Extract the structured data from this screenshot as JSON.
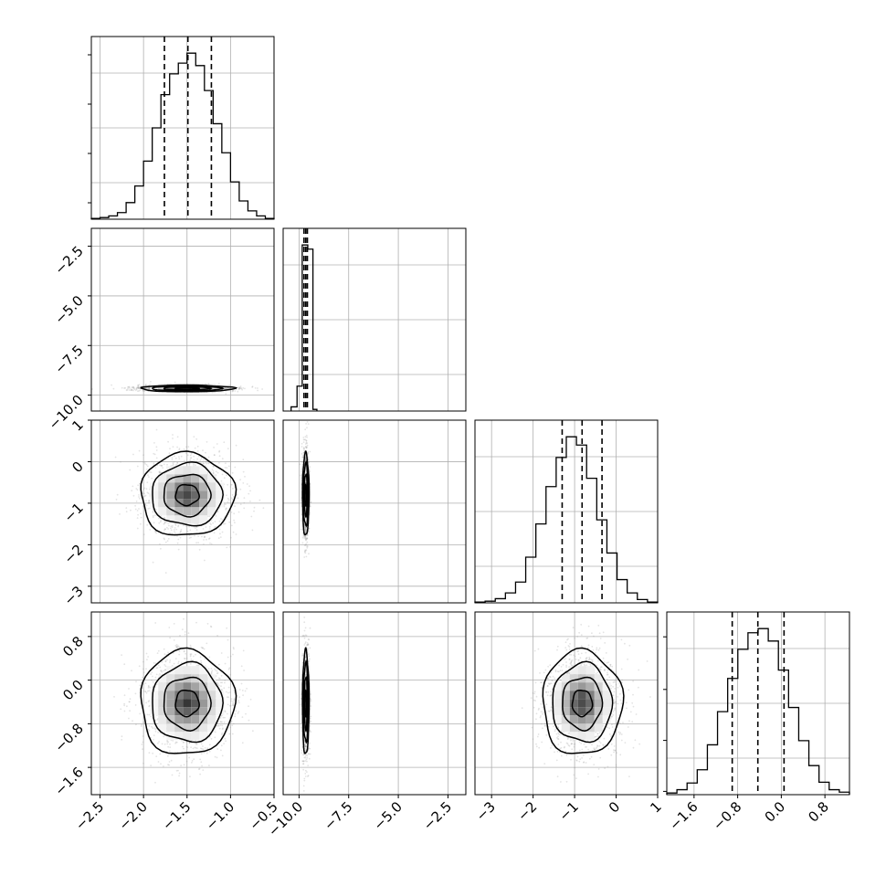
{
  "chart_data": {
    "type": "corner",
    "parameters": 4,
    "colors": {
      "line": "#000000",
      "grid": "#b0b0b0",
      "scatter": "#9a9a9a",
      "density": "#000000"
    },
    "grid": true,
    "ranges": [
      [
        -2.6,
        -0.5
      ],
      [
        -10.8,
        -1.6
      ],
      [
        -3.4,
        1.0
      ],
      [
        -2.1,
        1.25
      ]
    ],
    "ticks": [
      {
        "values": [
          -2.5,
          -2.0,
          -1.5,
          -1.0,
          -0.5
        ],
        "labels": [
          "−2.5",
          "−2.0",
          "−1.5",
          "−1.0",
          "−0.5"
        ]
      },
      {
        "values": [
          -10.0,
          -7.5,
          -5.0,
          -2.5
        ],
        "labels": [
          "−10.0",
          "−7.5",
          "−5.0",
          "−2.5"
        ]
      },
      {
        "values": [
          -3,
          -2,
          -1,
          0,
          1
        ],
        "labels": [
          "−3",
          "−2",
          "−1",
          "0",
          "1"
        ]
      },
      {
        "values": [
          -1.6,
          -0.8,
          0.0,
          0.8
        ],
        "labels": [
          "−1.6",
          "−0.8",
          "0.0",
          "0.8"
        ]
      }
    ],
    "marginals": [
      {
        "param": 0,
        "counts": [
          1,
          2,
          4,
          8,
          20,
          40,
          70,
          110,
          150,
          175,
          188,
          200,
          185,
          155,
          115,
          80,
          45,
          22,
          10,
          4,
          1
        ],
        "quantiles": [
          -1.76,
          -1.49,
          -1.22
        ]
      },
      {
        "param": 1,
        "bins": [
          [
            -10.4,
            -10.1,
            5
          ],
          [
            -10.1,
            -9.84,
            30
          ],
          [
            -9.84,
            -9.56,
            200
          ],
          [
            -9.56,
            -9.3,
            195
          ],
          [
            -9.3,
            -9.1,
            2
          ]
        ],
        "quantiles": [
          -9.75,
          -9.66,
          -9.58
        ]
      },
      {
        "param": 2,
        "counts": [
          1,
          2,
          5,
          12,
          25,
          55,
          95,
          140,
          175,
          200,
          190,
          150,
          100,
          60,
          28,
          12,
          4,
          1
        ],
        "quantiles": [
          -1.3,
          -0.82,
          -0.34
        ]
      },
      {
        "param": 3,
        "counts": [
          2,
          6,
          14,
          30,
          60,
          100,
          140,
          175,
          195,
          200,
          185,
          150,
          105,
          65,
          35,
          15,
          6,
          3
        ],
        "quantiles": [
          -0.9,
          -0.43,
          0.05
        ]
      }
    ],
    "joints": [
      {
        "x": 0,
        "y": 1,
        "mean": [
          -1.5,
          -9.66
        ],
        "sd": [
          0.27,
          0.08
        ],
        "peak": [
          -1.5,
          -9.66
        ]
      },
      {
        "x": 0,
        "y": 2,
        "mean": [
          -1.5,
          -0.8
        ],
        "sd": [
          0.27,
          0.5
        ],
        "peak": [
          -1.45,
          -0.7
        ]
      },
      {
        "x": 1,
        "y": 2,
        "mean": [
          -9.66,
          -0.8
        ],
        "sd": [
          0.08,
          0.5
        ],
        "peak": [
          -9.66,
          -0.75
        ]
      },
      {
        "x": 0,
        "y": 3,
        "mean": [
          -1.5,
          -0.42
        ],
        "sd": [
          0.27,
          0.48
        ],
        "peak": [
          -1.45,
          -0.4
        ]
      },
      {
        "x": 1,
        "y": 3,
        "mean": [
          -9.66,
          -0.42
        ],
        "sd": [
          0.08,
          0.48
        ],
        "peak": [
          -9.66,
          -0.42
        ]
      },
      {
        "x": 2,
        "y": 3,
        "mean": [
          -0.82,
          -0.42
        ],
        "sd": [
          0.48,
          0.48
        ],
        "peak": [
          -0.7,
          -0.38
        ]
      }
    ],
    "contour_levels_sigma": [
      0.5,
      1.0,
      1.5,
      2.0
    ]
  }
}
